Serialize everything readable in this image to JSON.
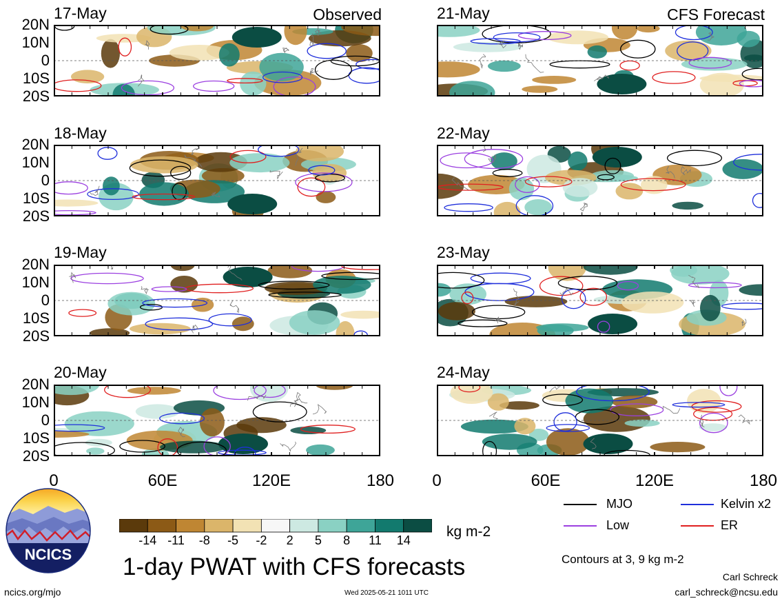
{
  "panels_left": {
    "source_label": "Observed",
    "dates": [
      "17-May",
      "18-May",
      "19-May",
      "20-May"
    ]
  },
  "panels_right": {
    "source_label": "CFS Forecast",
    "dates": [
      "21-May",
      "22-May",
      "23-May",
      "24-May"
    ]
  },
  "y_tick_labels": [
    "20N",
    "10N",
    "0",
    "10S",
    "20S"
  ],
  "x_tick_labels": [
    "0",
    "60E",
    "120E",
    "180"
  ],
  "colorbar": {
    "ticks": [
      "-14",
      "-11",
      "-8",
      "-5",
      "-2",
      "2",
      "5",
      "8",
      "11",
      "14"
    ],
    "colors": [
      "#5b3a0b",
      "#8c5a16",
      "#bf8633",
      "#dbb56a",
      "#f2e2b4",
      "#f7f7f7",
      "#cde9e2",
      "#8ad1c3",
      "#3ea598",
      "#127a6e",
      "#0b4d43"
    ],
    "unit": "kg m-2"
  },
  "legend": {
    "items": [
      {
        "label": "MJO",
        "color": "#000000"
      },
      {
        "label": "Kelvin x2",
        "color": "#1f2fdb"
      },
      {
        "label": "Low",
        "color": "#9b3fe0"
      },
      {
        "label": "ER",
        "color": "#e01f1f"
      }
    ],
    "contours_note": "Contours at 3, 9 kg m-2"
  },
  "title": "1-day PWAT with CFS forecasts",
  "logo_text": "NCICS",
  "footer": {
    "url": "ncics.org/mjo",
    "timestamp": "Wed 2025-05-21 1011 UTC",
    "author": "Carl Schreck",
    "email": "carl_schreck@ncsu.edu"
  },
  "chart_data": {
    "type": "heatmap",
    "variable": "1-day PWAT anomaly",
    "units": "kg m-2",
    "x_range": [
      0,
      180
    ],
    "x_ticks": [
      "0",
      "60E",
      "120E",
      "180"
    ],
    "y_range": [
      -20,
      20
    ],
    "y_ticks": [
      "20N",
      "10N",
      "0",
      "10S",
      "20S"
    ],
    "contour_levels": [
      3,
      9
    ],
    "panels": [
      {
        "date": "17-May",
        "source": "Observed"
      },
      {
        "date": "18-May",
        "source": "Observed"
      },
      {
        "date": "19-May",
        "source": "Observed"
      },
      {
        "date": "20-May",
        "source": "Observed"
      },
      {
        "date": "21-May",
        "source": "CFS Forecast"
      },
      {
        "date": "22-May",
        "source": "CFS Forecast"
      },
      {
        "date": "23-May",
        "source": "CFS Forecast"
      },
      {
        "date": "24-May",
        "source": "CFS Forecast"
      }
    ],
    "legend": [
      "MJO",
      "Kelvin x2",
      "Low",
      "ER"
    ]
  }
}
